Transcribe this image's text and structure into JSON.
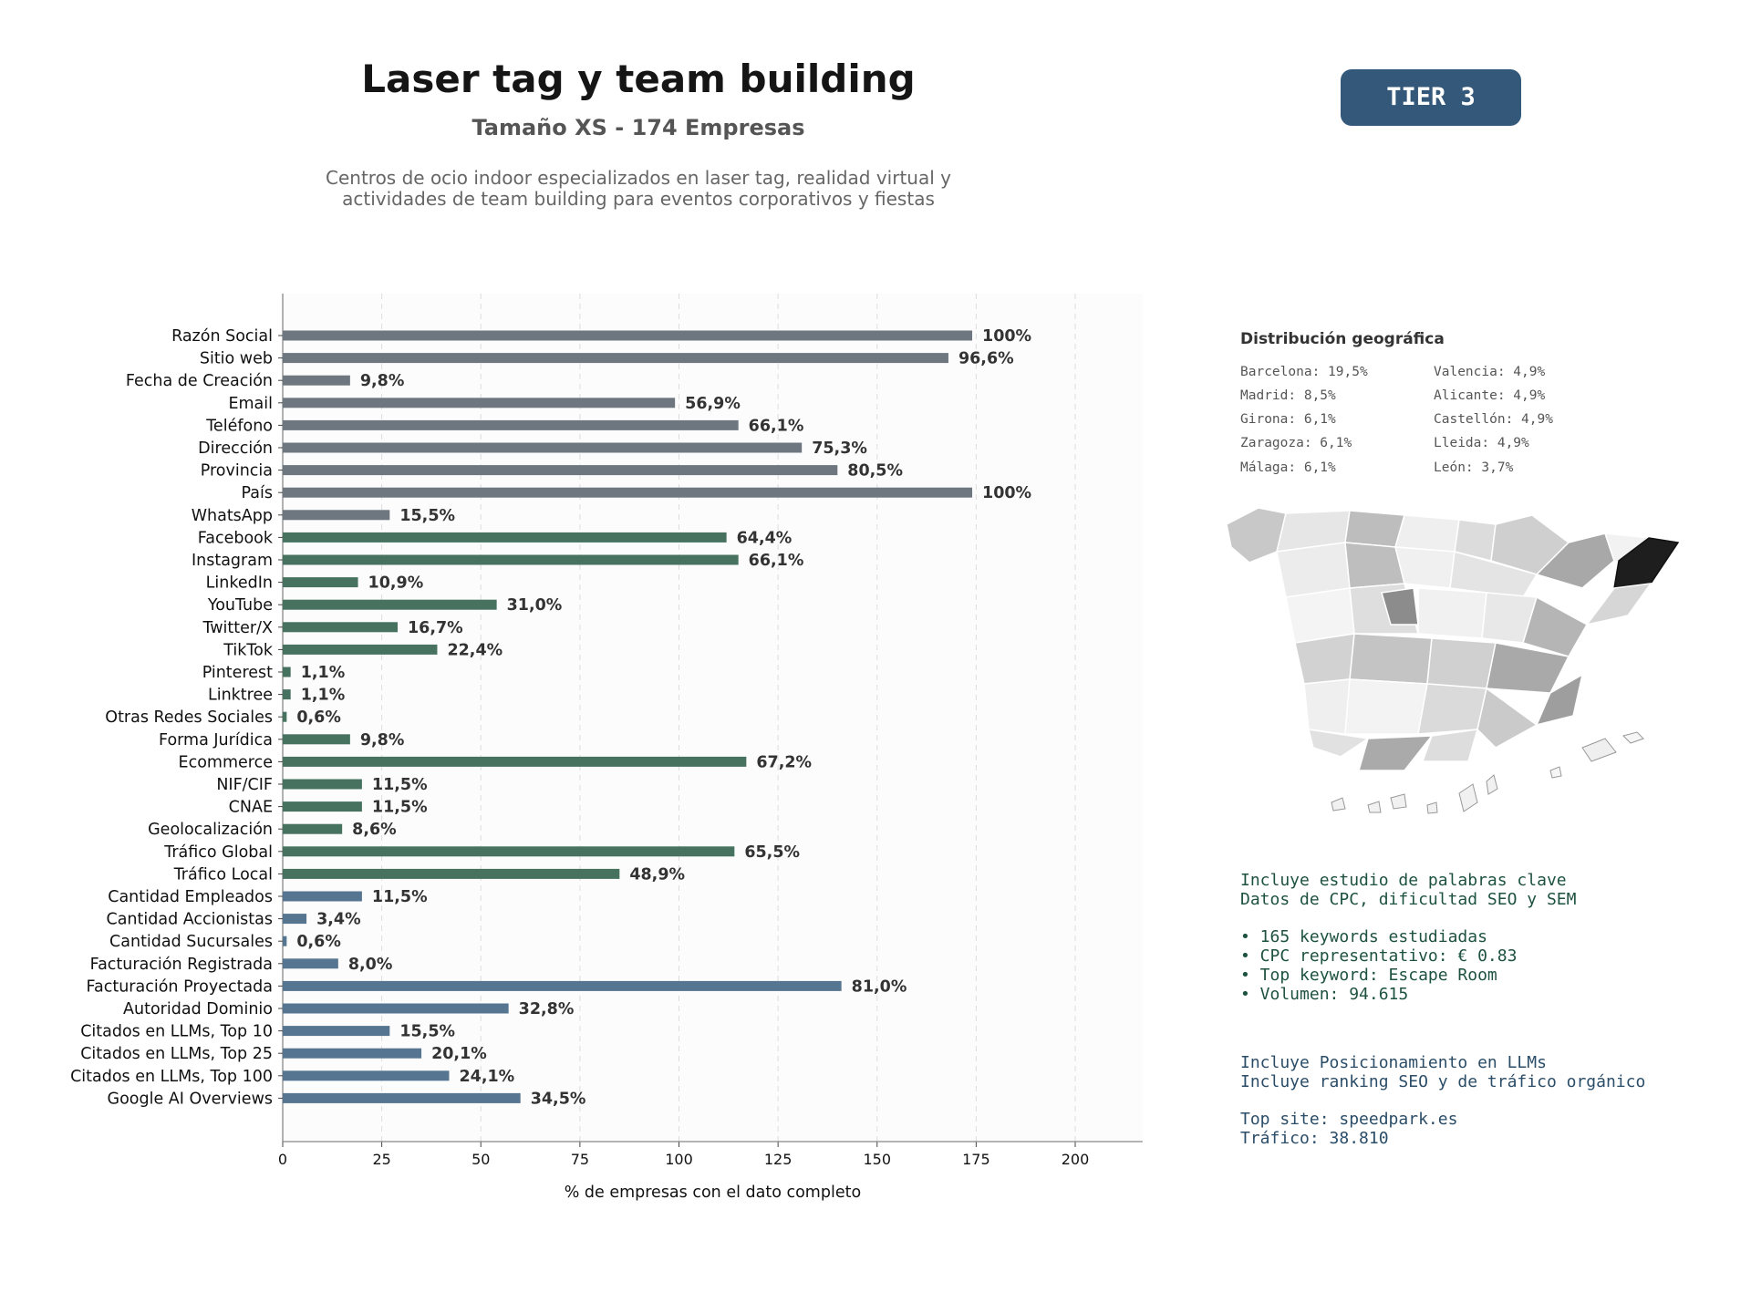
{
  "header": {
    "title": "Laser tag y team building",
    "subtitle": "Tamaño XS - 174 Empresas",
    "description_line1": "Centros de ocio indoor especializados en laser tag, realidad virtual y",
    "description_line2": "actividades de team building para eventos corporativos y fiestas",
    "tier": "TIER 3",
    "tier_color": "#34587a"
  },
  "chart_data": {
    "type": "bar",
    "orientation": "horizontal",
    "xlabel": "% de empresas con el dato completo",
    "xlim": [
      0,
      217
    ],
    "xticks": [
      0,
      25,
      50,
      75,
      100,
      125,
      150,
      175,
      200
    ],
    "grid": "vertical dashed",
    "categories": [
      "Razón Social",
      "Sitio web",
      "Fecha de Creación",
      "Email",
      "Teléfono",
      "Dirección",
      "Provincia",
      "País",
      "WhatsApp",
      "Facebook",
      "Instagram",
      "LinkedIn",
      "YouTube",
      "Twitter/X",
      "TikTok",
      "Pinterest",
      "Linktree",
      "Otras Redes Sociales",
      "Forma Jurídica",
      "Ecommerce",
      "NIF/CIF",
      "CNAE",
      "Geolocalización",
      "Tráfico Global",
      "Tráfico Local",
      "Cantidad Empleados",
      "Cantidad Accionistas",
      "Cantidad Sucursales",
      "Facturación Registrada",
      "Facturación Proyectada",
      "Autoridad Dominio",
      "Citados en LLMs, Top 10",
      "Citados en LLMs, Top 25",
      "Citados en LLMs, Top 100",
      "Google AI Overviews"
    ],
    "values": [
      174,
      168,
      17,
      99,
      115,
      131,
      140,
      174,
      27,
      112,
      115,
      19,
      54,
      29,
      39,
      2,
      2,
      1,
      17,
      117,
      20,
      20,
      15,
      114,
      85,
      20,
      6,
      1,
      14,
      141,
      57,
      27,
      35,
      42,
      60
    ],
    "labels": [
      "100%",
      "96,6%",
      "9,8%",
      "56,9%",
      "66,1%",
      "75,3%",
      "80,5%",
      "100%",
      "15,5%",
      "64,4%",
      "66,1%",
      "10,9%",
      "31,0%",
      "16,7%",
      "22,4%",
      "1,1%",
      "1,1%",
      "0,6%",
      "9,8%",
      "67,2%",
      "11,5%",
      "11,5%",
      "8,6%",
      "65,5%",
      "48,9%",
      "11,5%",
      "3,4%",
      "0,6%",
      "8,0%",
      "81,0%",
      "32,8%",
      "15,5%",
      "20,1%",
      "24,1%",
      "34,5%"
    ],
    "groups": [
      {
        "color": "#6e7780",
        "count": 9
      },
      {
        "color": "#46725f",
        "count": 16
      },
      {
        "color": "#557590",
        "count": 10
      }
    ]
  },
  "geo": {
    "title": "Distribución geográfica",
    "left": [
      "Barcelona: 19,5%",
      "Madrid: 8,5%",
      "Girona: 6,1%",
      "Zaragoza: 6,1%",
      "Málaga: 6,1%"
    ],
    "right": [
      "Valencia: 4,9%",
      "Alicante: 4,9%",
      "Castellón: 4,9%",
      "Lleida: 4,9%",
      "León: 3,7%"
    ]
  },
  "seo": {
    "line1": "Incluye estudio de palabras clave",
    "line2": "Datos de CPC, dificultad SEO y SEM",
    "b1": "• 165 keywords estudiadas",
    "b2": "• CPC representativo: € 0.83",
    "b3": "• Top keyword: Escape Room",
    "b4": "• Volumen: 94.615"
  },
  "llm": {
    "line1": "Incluye Posicionamiento en LLMs",
    "line2": "Incluye ranking SEO y de tráfico orgánico",
    "top_site": "Top site: speedpark.es",
    "traffic": "Tráfico: 38.810"
  }
}
